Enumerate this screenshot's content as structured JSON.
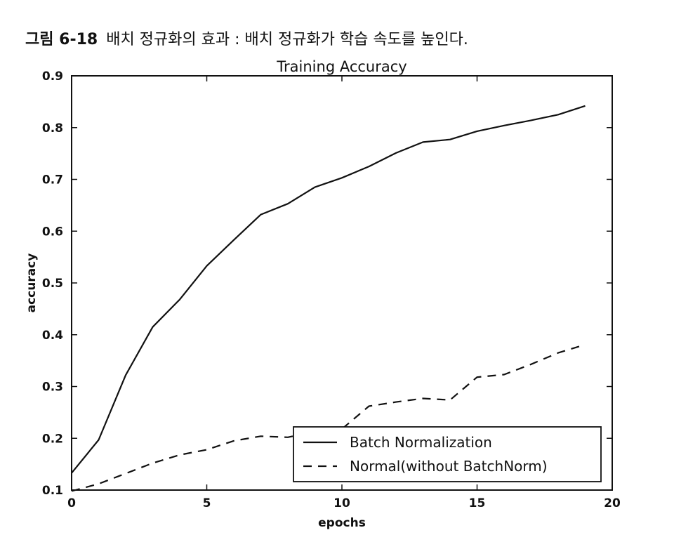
{
  "caption": {
    "figure_number": "그림 6-18",
    "text": "배치 정규화의 효과 : 배치 정규화가 학습 속도를 높인다."
  },
  "chart_data": {
    "type": "line",
    "title": "Training Accuracy",
    "xlabel": "epochs",
    "ylabel": "accuracy",
    "xlim": [
      0,
      20
    ],
    "ylim": [
      0.1,
      0.9
    ],
    "xticks": [
      "0",
      "5",
      "10",
      "15",
      "20"
    ],
    "yticks": [
      "0.1",
      "0.2",
      "0.3",
      "0.4",
      "0.5",
      "0.6",
      "0.7",
      "0.8",
      "0.9"
    ],
    "grid": false,
    "legend_position": "lower-right",
    "x": [
      0,
      1,
      2,
      3,
      4,
      5,
      6,
      7,
      8,
      9,
      10,
      11,
      12,
      13,
      14,
      15,
      16,
      17,
      18,
      19
    ],
    "series": [
      {
        "name": "Batch Normalization",
        "style": "solid",
        "color": "#111111",
        "values": [
          0.133,
          0.197,
          0.322,
          0.415,
          0.468,
          0.533,
          0.583,
          0.632,
          0.653,
          0.685,
          0.703,
          0.725,
          0.751,
          0.772,
          0.777,
          0.793,
          0.804,
          0.814,
          0.825,
          0.842
        ]
      },
      {
        "name": "Normal(without BatchNorm)",
        "style": "dashed",
        "color": "#111111",
        "values": [
          0.098,
          0.112,
          0.132,
          0.152,
          0.168,
          0.178,
          0.195,
          0.204,
          0.202,
          0.213,
          0.218,
          0.262,
          0.27,
          0.277,
          0.274,
          0.318,
          0.323,
          0.343,
          0.365,
          0.381
        ]
      }
    ]
  }
}
